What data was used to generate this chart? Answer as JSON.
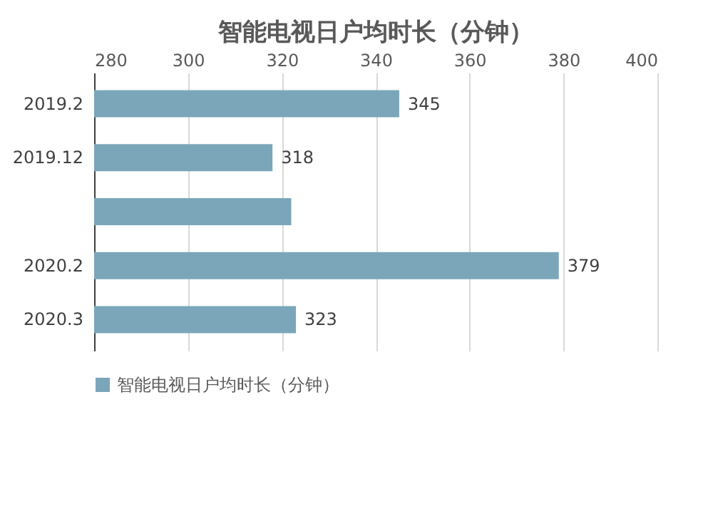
{
  "chart_data": {
    "type": "bar",
    "orientation": "horizontal",
    "title": "智能电视日户均时长（分钟）",
    "categories": [
      "2019.2",
      "2019.12",
      null,
      "2020.2",
      "2020.3"
    ],
    "series": [
      {
        "name": "智能电视日户均时长（分钟）",
        "color": "#7ba6b9",
        "values": [
          345,
          318,
          322,
          379,
          323
        ],
        "value_labels": [
          "345",
          "318",
          null,
          "379",
          "323"
        ]
      }
    ],
    "xlim": [
      280,
      400
    ],
    "xticks": [
      280,
      300,
      320,
      340,
      360,
      380,
      400
    ],
    "grid": "x",
    "legend": "bottom"
  }
}
